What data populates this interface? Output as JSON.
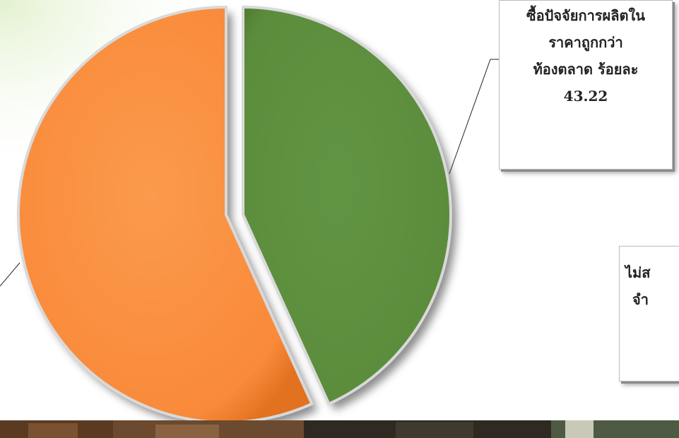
{
  "chart_data": {
    "type": "pie",
    "slices": [
      {
        "label": "ซื้อปัจจัยการผลิตในราคาถูกกว่าท้องตลาด ร้อยละ 43.22",
        "value": 43.22,
        "color": "#5b8c3b"
      },
      {
        "label": "ไม่ส จำ",
        "value": 56.78,
        "color": "#f98a3a"
      }
    ]
  },
  "labels": {
    "green": [
      "ซื้อปัจจัยการผลิตใน",
      "ราคาถูกกว่า",
      "ท้องตลาด ร้อยละ",
      "43.22"
    ],
    "orange": [
      "ไม่ส",
      "จำ"
    ]
  }
}
